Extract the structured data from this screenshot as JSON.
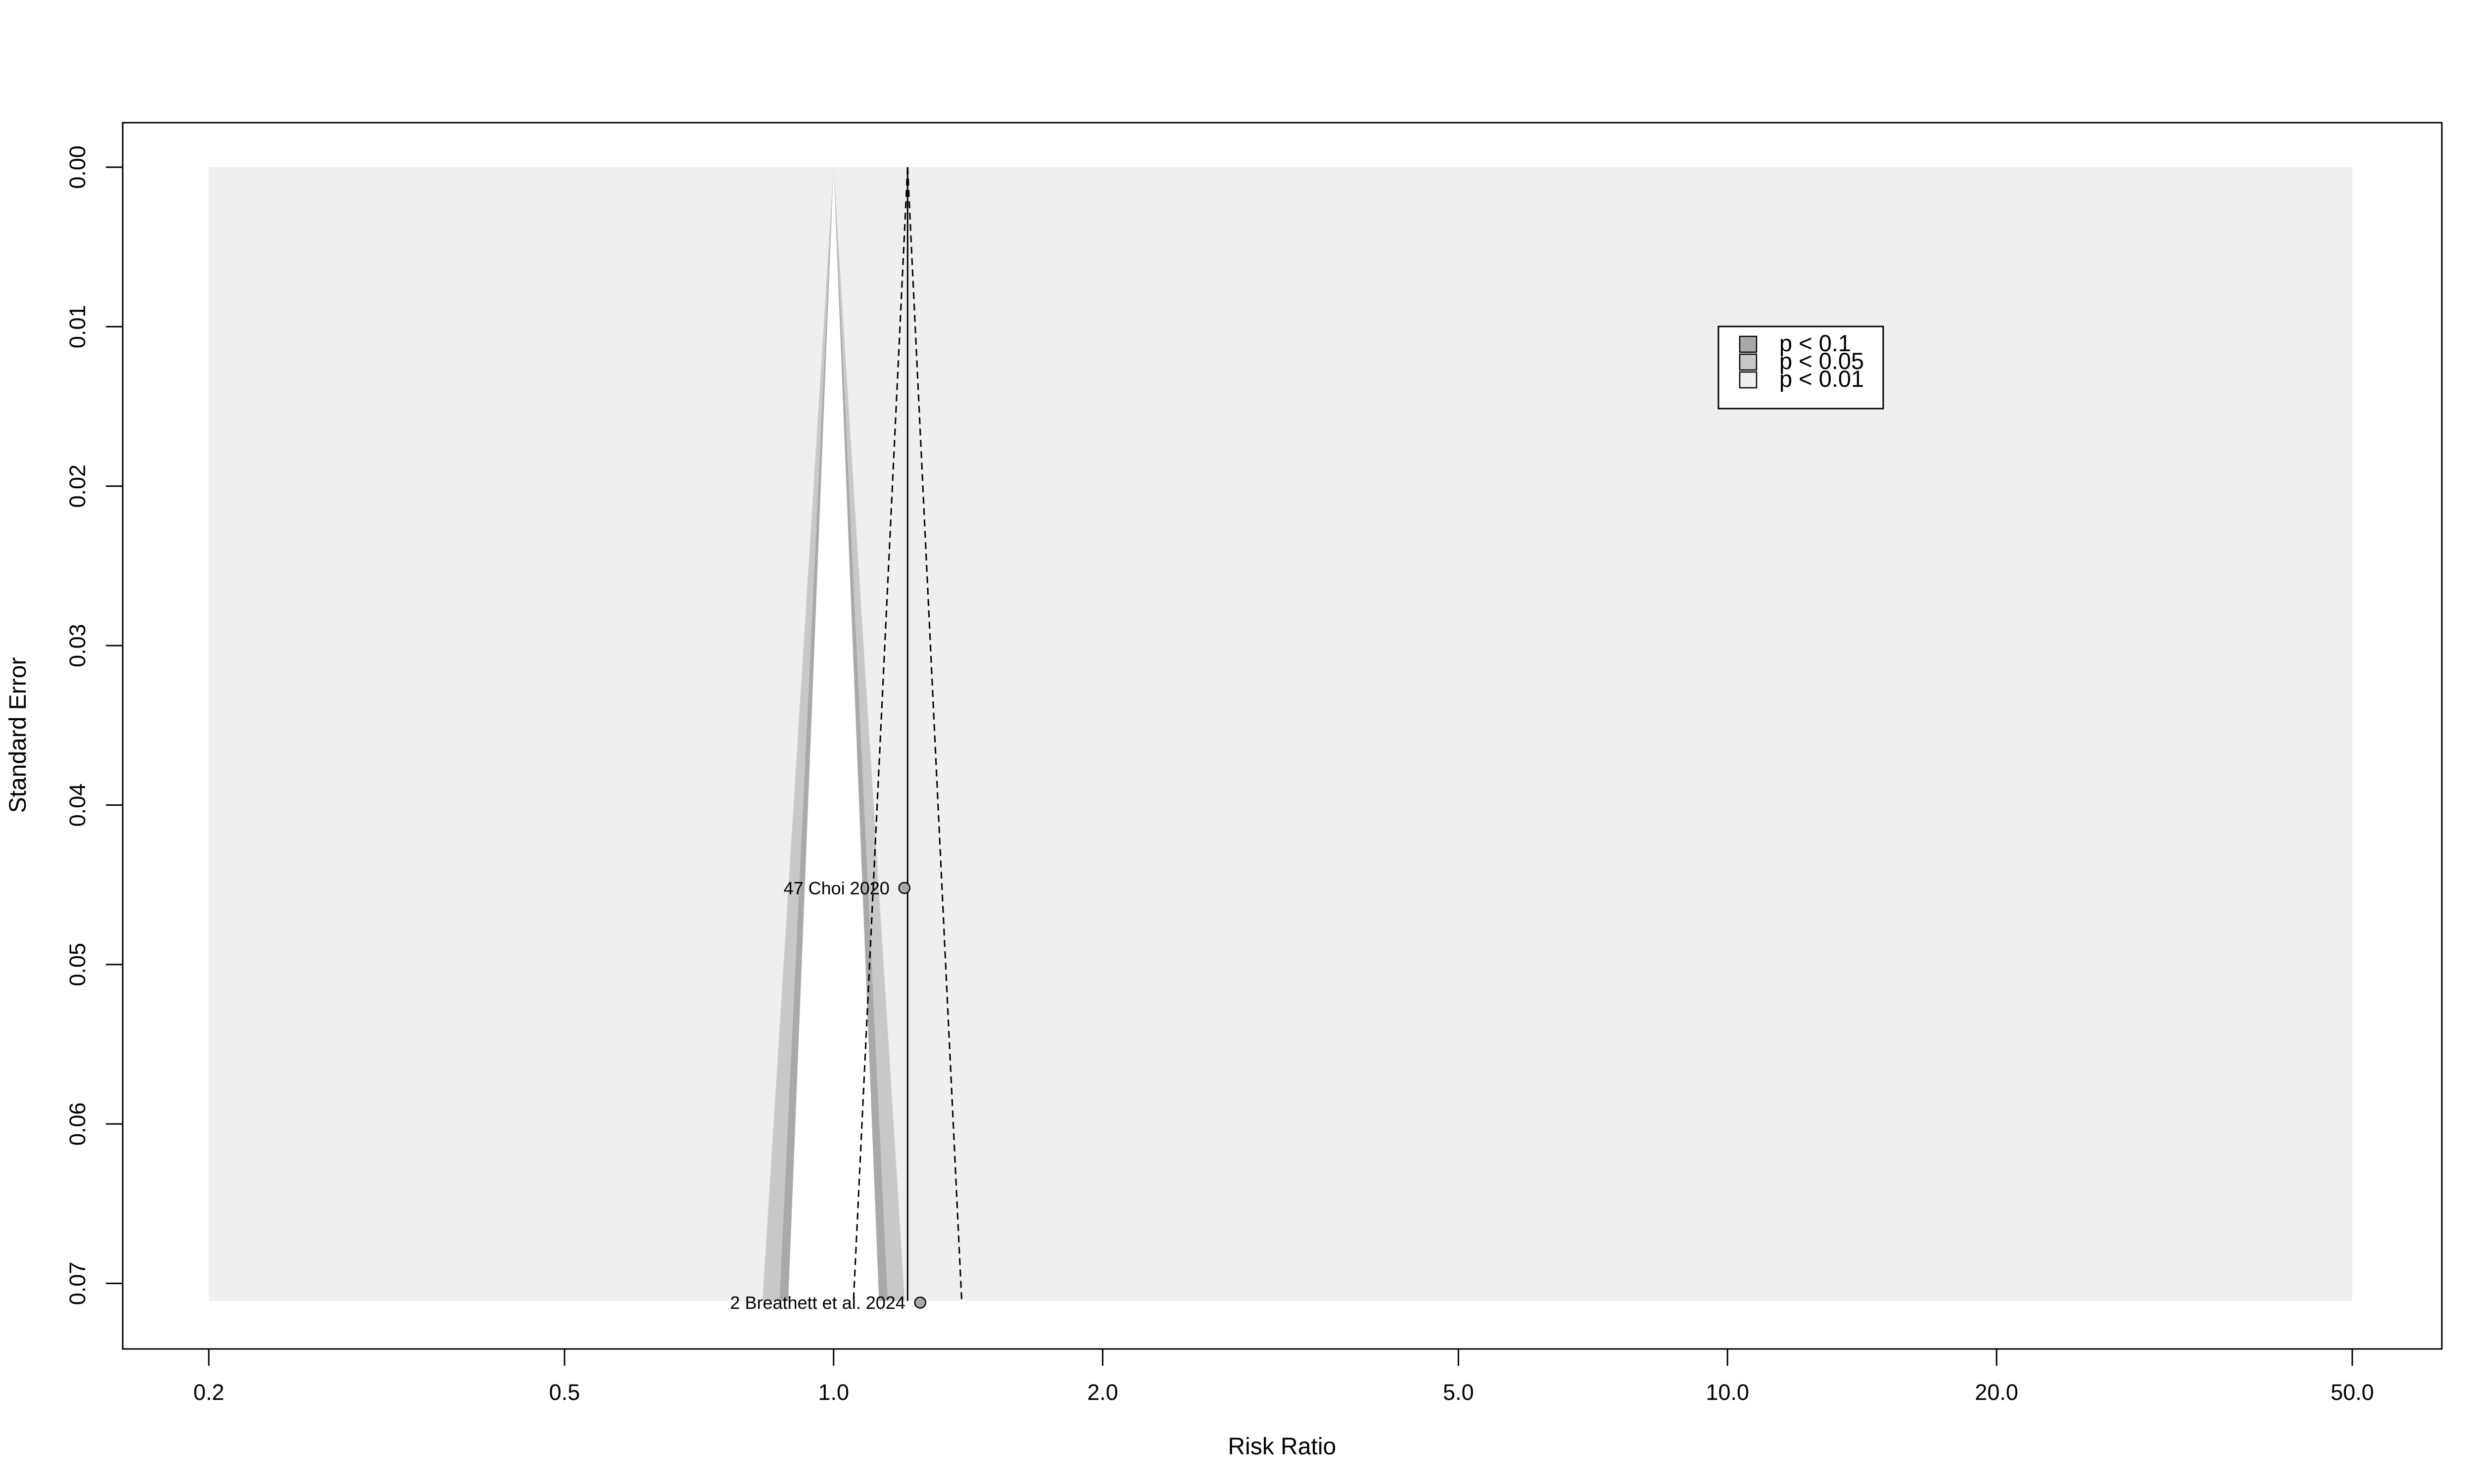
{
  "chart_data": {
    "type": "scatter",
    "title": "",
    "xlabel": "Risk Ratio",
    "ylabel": "Standard Error",
    "x_scale": "log",
    "x_ticks": [
      0.2,
      0.5,
      1.0,
      2.0,
      5.0,
      10.0,
      20.0,
      50.0
    ],
    "x_tick_labels": [
      "0.2",
      "0.5",
      "1.0",
      "2.0",
      "5.0",
      "10.0",
      "20.0",
      "50.0"
    ],
    "xlim": [
      0.2,
      50.0
    ],
    "y_ticks": [
      0.0,
      0.01,
      0.02,
      0.03,
      0.04,
      0.05,
      0.06,
      0.07
    ],
    "y_tick_labels": [
      "0.00",
      "0.01",
      "0.02",
      "0.03",
      "0.04",
      "0.05",
      "0.06",
      "0.07"
    ],
    "ylim": [
      0.0,
      0.0711
    ],
    "y_reversed": true,
    "grid": false,
    "pooled_estimate": 1.21,
    "contour_null": 1.0,
    "points": [
      {
        "label": "47 Choi 2020",
        "x": 1.2,
        "y": 0.0452
      },
      {
        "label": "2 Breathett et al. 2024",
        "x": 1.25,
        "y": 0.0712
      }
    ],
    "contour_levels": [
      {
        "label": "p < 0.1",
        "color": "#a9a9a9"
      },
      {
        "label": "p < 0.05",
        "color": "#c8c8c8"
      },
      {
        "label": "p < 0.01",
        "color": "#efefef"
      }
    ],
    "legend_position": "top-right",
    "colors": {
      "background_region": "#efefef",
      "inner_white": "#ffffff",
      "point_fill": "#a9a9a9",
      "lines": "#000000"
    }
  }
}
